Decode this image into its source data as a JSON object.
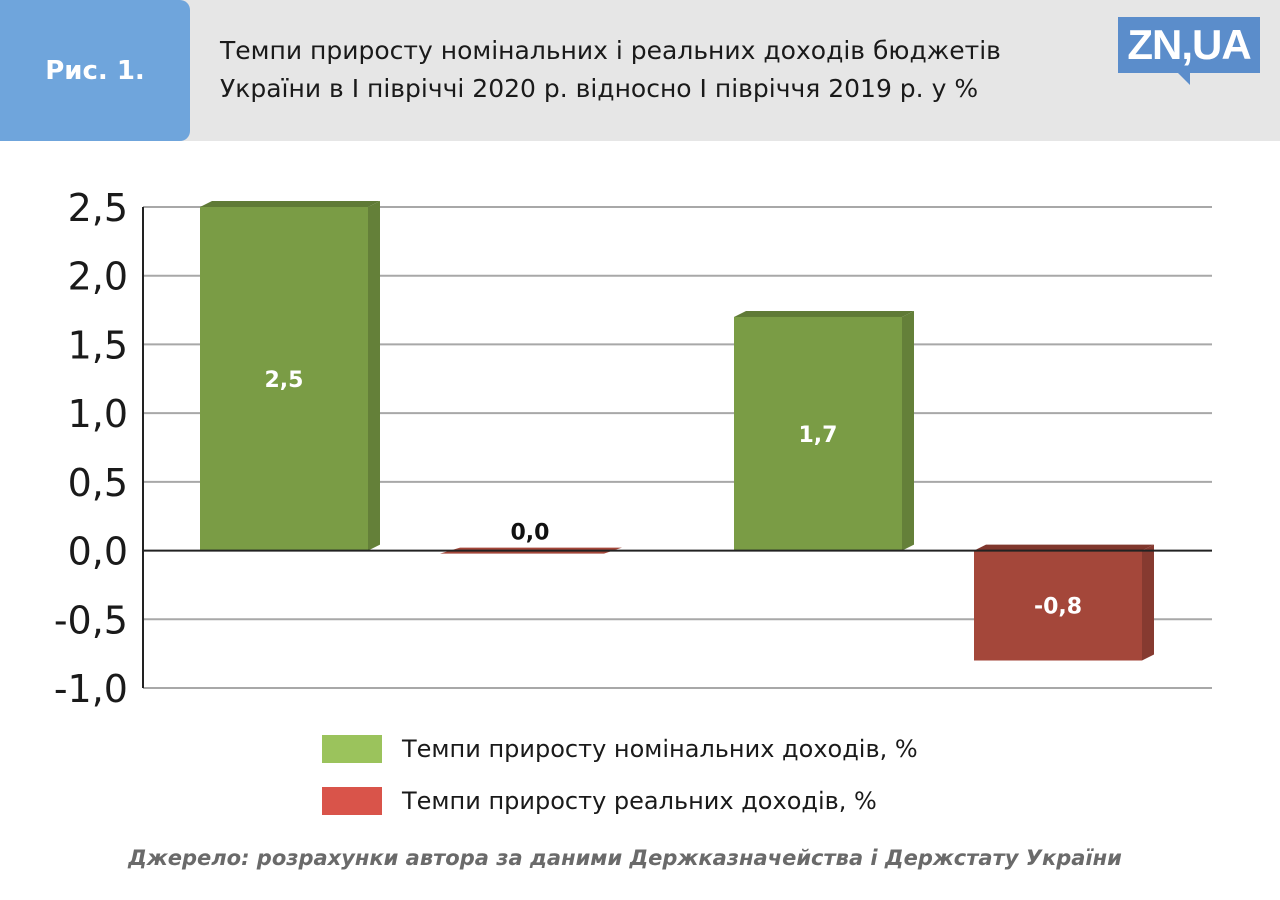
{
  "header": {
    "figure_label": "Рис. 1.",
    "title_line1": "Темпи приросту номінальних і реальних доходів бюджетів",
    "title_line2": "України в І півріччі 2020 р. відносно І півріччя 2019 р. у %",
    "logo": "ZN,UA"
  },
  "colors": {
    "header_bg": "#e6e6e6",
    "label_bg": "#6fa5dc",
    "logo_bg": "#5b8dcb"
  },
  "chart_data": {
    "type": "bar",
    "title": "Темпи приросту номінальних і реальних доходів бюджетів України в І півріччі 2020 р. відносно І півріччя 2019 р. у %",
    "xlabel": "",
    "ylabel": "",
    "ylim": [
      -1.0,
      2.5
    ],
    "yticks": [
      "2,5",
      "2,0",
      "1,5",
      "1,0",
      "0,5",
      "0,0",
      "-0,5",
      "-1,0"
    ],
    "ytick_values": [
      2.5,
      2.0,
      1.5,
      1.0,
      0.5,
      0.0,
      -0.5,
      -1.0
    ],
    "grid": true,
    "style": "3d",
    "legend_position": "bottom",
    "series": [
      {
        "name": "Темпи приросту номінальних доходів, %",
        "color": "#7a9c45",
        "legend_color": "#9bc35c",
        "values": [
          2.5,
          1.7
        ],
        "labels": [
          "2,5",
          "1,7"
        ]
      },
      {
        "name": "Темпи приросту реальних доходів, %",
        "color": "#a4473a",
        "legend_color": "#d9544a",
        "values": [
          0.0,
          -0.8
        ],
        "labels": [
          "0,0",
          "-0,8"
        ]
      }
    ]
  },
  "source": "Джерело: розрахунки автора за даними Держказначейства і Держстату України"
}
